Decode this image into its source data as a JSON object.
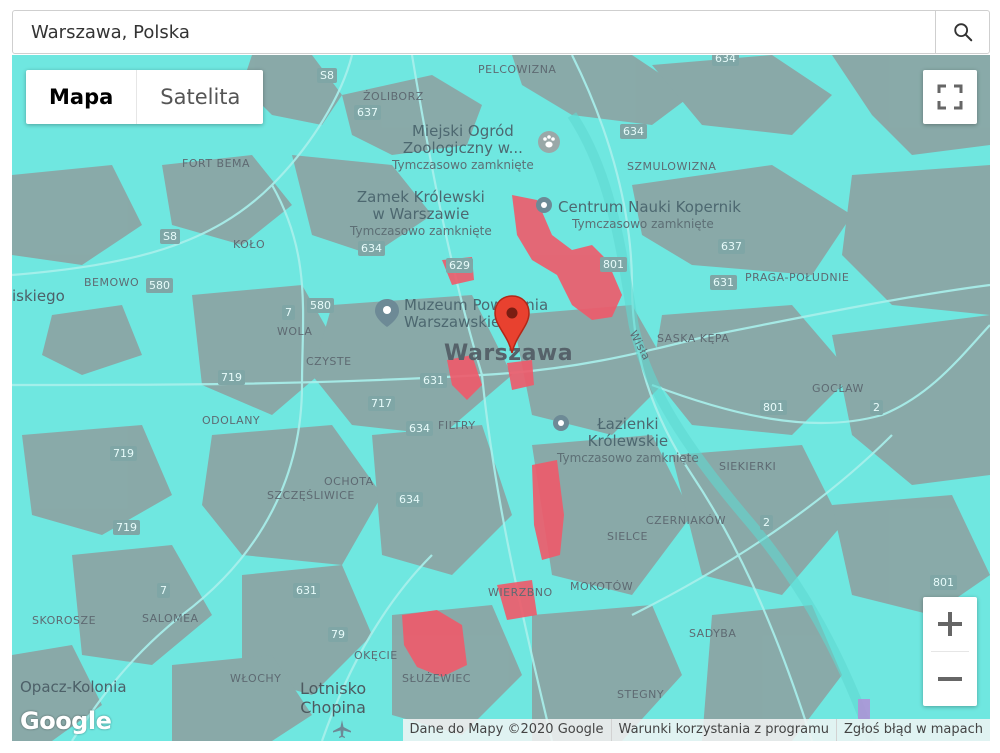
{
  "search": {
    "value": "Warszawa, Polska",
    "button_icon": "search-icon"
  },
  "map_type": {
    "map_label": "Mapa",
    "satellite_label": "Satelita",
    "selected": "Mapa"
  },
  "controls": {
    "fullscreen_icon": "fullscreen-icon",
    "zoom_in_label": "+",
    "zoom_out_label": "−"
  },
  "city_label": "Warszawa",
  "districts": {
    "pelcowizna": "PELCOWIZNA",
    "zoliborz": "ŻOLIBORZ",
    "fort_bema": "FORT BEMA",
    "kolo": "KOŁO",
    "bemowo": "BEMOWO",
    "wola": "WOLA",
    "czyste": "CZYSTE",
    "odolany": "ODOLANY",
    "ochota": "OCHOTA",
    "szczesliwice": "SZCZĘŚLIWICE",
    "skorosze": "SKOROSZE",
    "salomea": "SALOMEA",
    "wlochy": "WŁOCHY",
    "okecie": "OKĘCIE",
    "sluzewiec": "SŁUŻEWIEC",
    "szmulowizna": "SZMULOWIZNA",
    "praga_poludnie": "PRAGA-POŁUDNIE",
    "saska_kepa": "SASKA KĘPA",
    "goclaw": "GOCŁAW",
    "siekierki": "SIEKIERKI",
    "czerniakow": "CZERNIAKÓW",
    "sielce": "SIELCE",
    "mokotow": "MOKOTÓW",
    "wierzbno": "WIERZBNO",
    "sadyba": "SADYBA",
    "stegny": "STEGNY",
    "filtry": "FILTRY"
  },
  "pois": {
    "zoo_line1": "Miejski Ogród",
    "zoo_line2": "Zoologiczny w...",
    "zoo_status": "Tymczasowo zamknięte",
    "castle_line1": "Zamek Królewski",
    "castle_line2": "w Warszawie",
    "castle_status": "Tymczasowo zamknięte",
    "kopernik": "Centrum Nauki Kopernik",
    "kopernik_status": "Tymczasowo zamknięte",
    "museum_line1": "Muzeum Powstania",
    "museum_line2": "Warszawskiego",
    "lazienki_line1": "Łazienki",
    "lazienki_line2": "Królewskie",
    "lazienki_status": "Tymczasowo zamknięte",
    "airport_line1": "Lotnisko",
    "airport_line2": "Chopina"
  },
  "places": {
    "wawrzyszew": "iskiego",
    "opacz": "Opacz-Kolonia",
    "wisla": "Wisła"
  },
  "road_shields": {
    "s8_top": "S8",
    "s8_left": "S8",
    "r634_top": "634",
    "r637_a": "637",
    "r634_b": "634",
    "r634_c": "634",
    "r629": "629",
    "r801_a": "801",
    "r637_b": "637",
    "r631_a": "631",
    "r580_a": "580",
    "r580_b": "580",
    "r7_a": "7",
    "r719_a": "719",
    "r631_b": "631",
    "r717": "717",
    "r634_d": "634",
    "r719_b": "719",
    "r634_e": "634",
    "r719_c": "719",
    "r7_b": "7",
    "r631_c": "631",
    "r79": "79",
    "r801_b": "801",
    "r2_a": "2",
    "r2_b": "2",
    "r801_c": "801"
  },
  "attribution": {
    "logo": "Google",
    "data": "Dane do Mapy ©2020 Google",
    "terms": "Warunki korzystania z programu",
    "report": "Zgłoś błąd w mapach"
  },
  "colors": {
    "map_base": "#6fe7e0",
    "urban_gray": "#8e9f9f",
    "heat_red": "#f05a6a",
    "marker": "#d93025"
  }
}
